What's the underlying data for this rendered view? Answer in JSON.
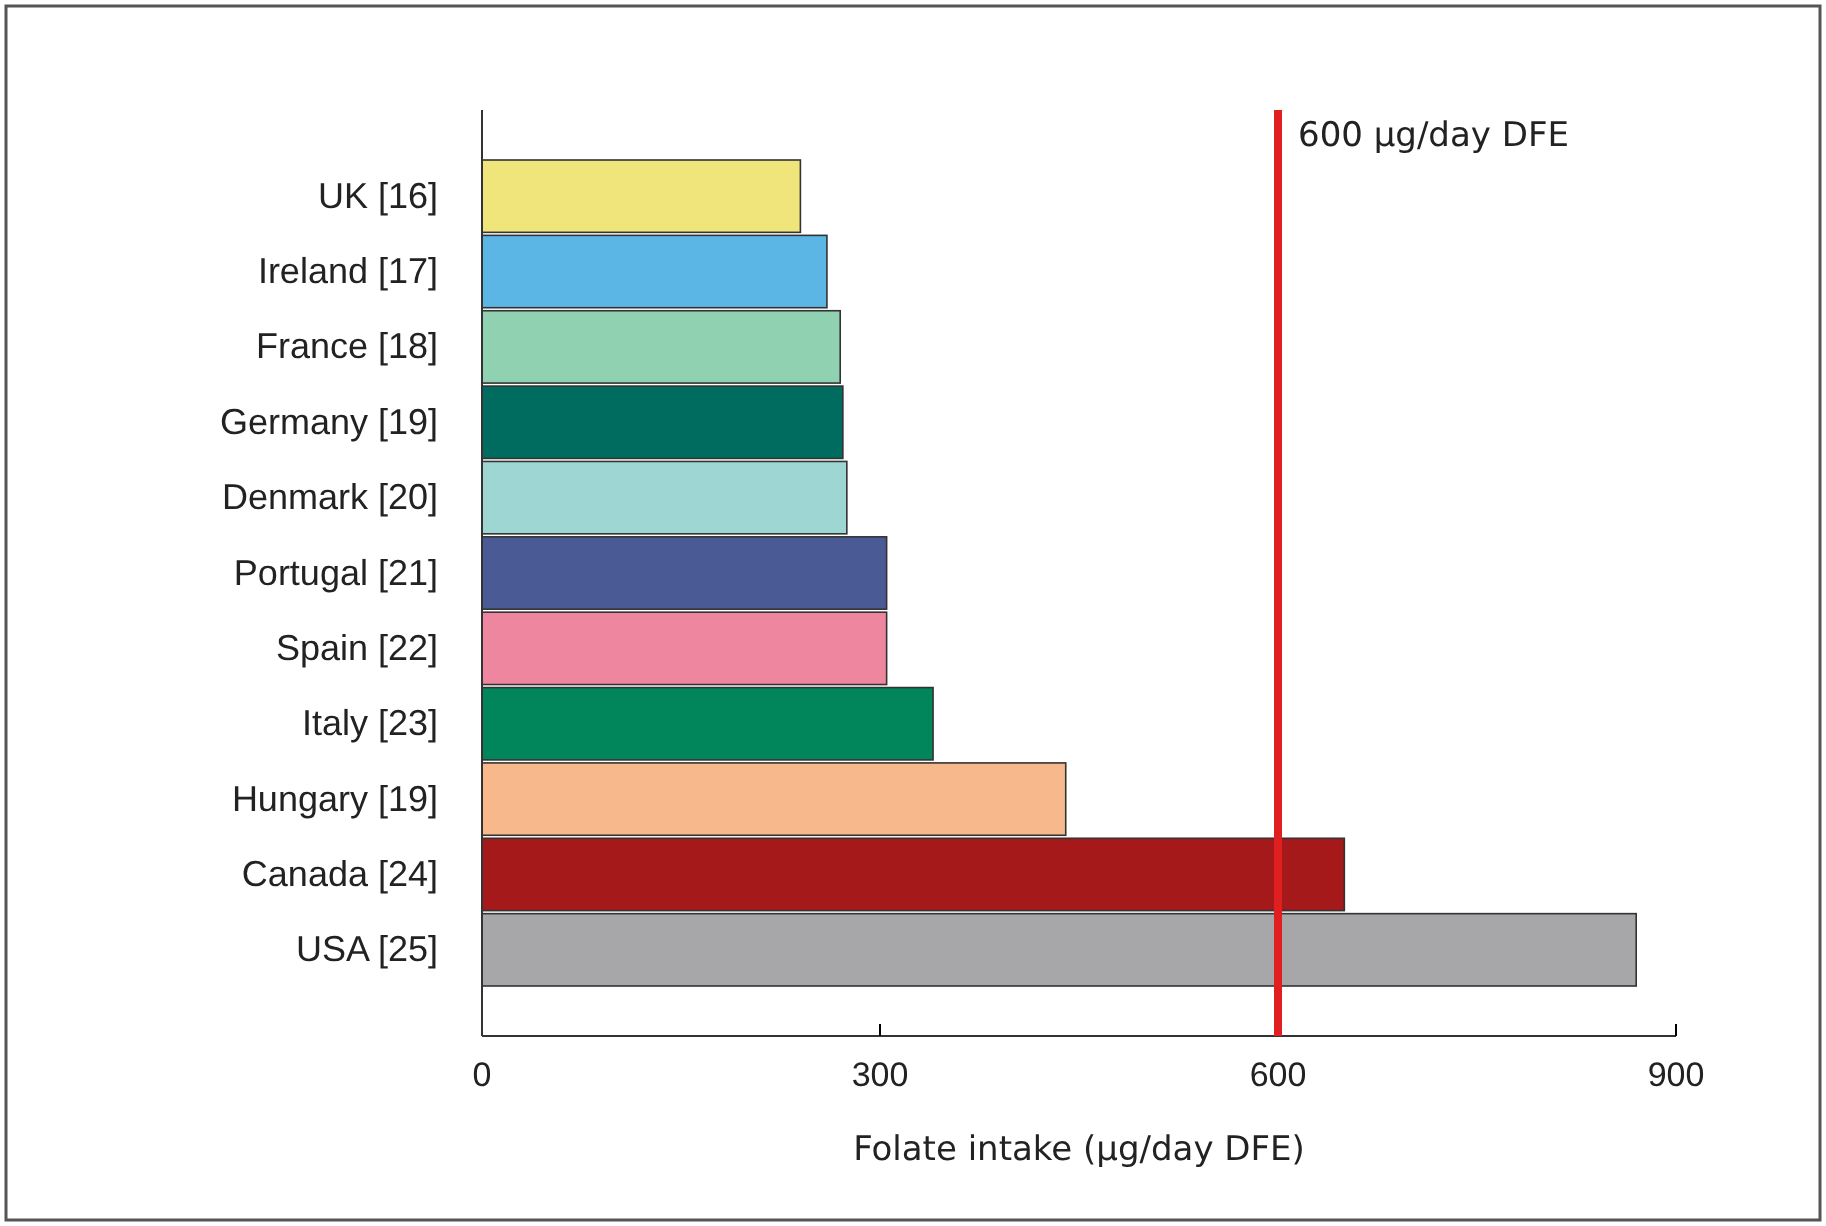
{
  "chart_data": {
    "type": "bar",
    "orientation": "horizontal",
    "xlabel": "Folate intake (µg/day DFE)",
    "categories": [
      "UK [16]",
      "Ireland [17]",
      "France [18]",
      "Germany [19]",
      "Denmark [20]",
      "Portugal [21]",
      "Spain [22]",
      "Italy [23]",
      "Hungary [19]",
      "Canada [24]",
      "USA [25]"
    ],
    "values": [
      240,
      260,
      270,
      272,
      275,
      305,
      305,
      340,
      440,
      650,
      870
    ],
    "colors": [
      "#efe57a",
      "#5bb5e5",
      "#8fd1b0",
      "#006b5f",
      "#9ed6d3",
      "#4a5a94",
      "#ee86a0",
      "#00865a",
      "#f7b98b",
      "#a5191a",
      "#a7a7a9"
    ],
    "xlim": [
      0,
      900
    ],
    "xticks": [
      0,
      300,
      600,
      900
    ],
    "ref_lines": [
      {
        "axis": "x",
        "value": 600,
        "label": "600 µg/day DFE",
        "color": "#e02020"
      }
    ]
  }
}
